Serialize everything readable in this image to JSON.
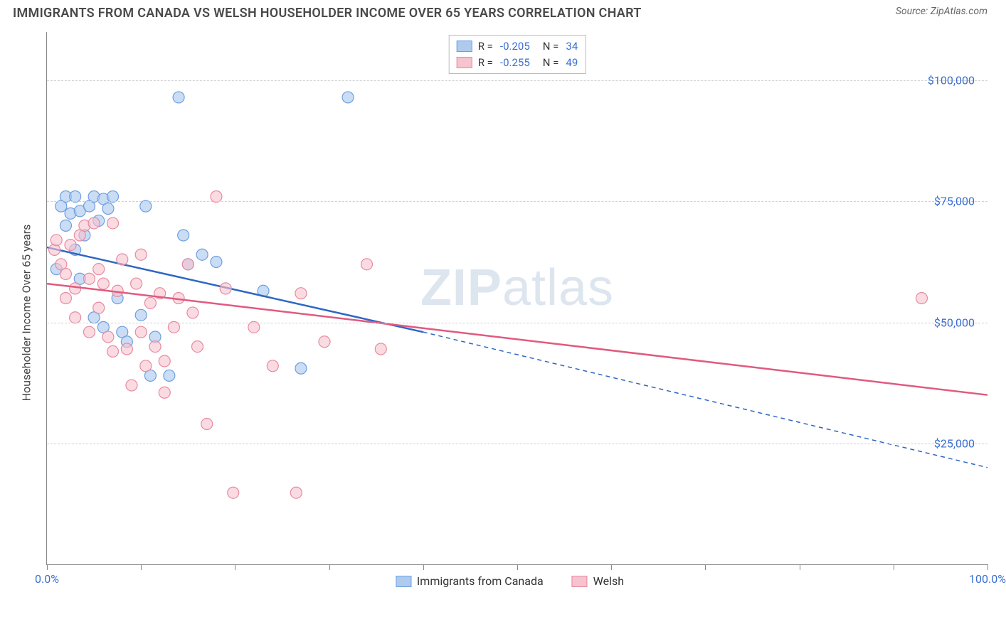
{
  "title": "IMMIGRANTS FROM CANADA VS WELSH HOUSEHOLDER INCOME OVER 65 YEARS CORRELATION CHART",
  "source_label": "Source: ZipAtlas.com",
  "watermark": "ZIPatlas",
  "yaxis_label": "Householder Income Over 65 years",
  "chart": {
    "type": "scatter-correlation",
    "background_color": "#ffffff",
    "grid_color": "#d0d0d0",
    "axis_color": "#888888",
    "tick_label_color": "#3b6fd0",
    "xlim": [
      0,
      100
    ],
    "ylim": [
      0,
      110000
    ],
    "xticks": [
      0,
      10,
      20,
      30,
      40,
      50,
      60,
      70,
      80,
      90,
      100
    ],
    "xtick_labels": {
      "0": "0.0%",
      "100": "100.0%"
    },
    "yticks": [
      25000,
      50000,
      75000,
      100000
    ],
    "ytick_labels": {
      "25000": "$25,000",
      "50000": "$50,000",
      "75000": "$75,000",
      "100000": "$100,000"
    },
    "series": [
      {
        "name": "Immigrants from Canada",
        "color_fill": "#aecbee",
        "color_stroke": "#6d9fe0",
        "line_color": "#2e66c4",
        "line_width": 2.5,
        "marker_radius": 8,
        "marker_opacity": 0.65,
        "r_value": "-0.205",
        "n_value": "34",
        "trend": {
          "x1": 0,
          "y1": 65500,
          "x2": 40,
          "y2": 48000,
          "dash_after_x": 40,
          "x3": 100,
          "y3": 20000
        },
        "points": [
          [
            1.0,
            61000
          ],
          [
            1.5,
            74000
          ],
          [
            2.0,
            76000
          ],
          [
            2.0,
            70000
          ],
          [
            2.5,
            72500
          ],
          [
            3.0,
            76000
          ],
          [
            3.0,
            65000
          ],
          [
            3.5,
            73000
          ],
          [
            3.5,
            59000
          ],
          [
            4.0,
            68000
          ],
          [
            4.5,
            74000
          ],
          [
            5.0,
            76000
          ],
          [
            5.0,
            51000
          ],
          [
            5.5,
            71000
          ],
          [
            6.0,
            75500
          ],
          [
            6.0,
            49000
          ],
          [
            6.5,
            73500
          ],
          [
            7.0,
            76000
          ],
          [
            7.5,
            55000
          ],
          [
            8.0,
            48000
          ],
          [
            8.5,
            46000
          ],
          [
            10.0,
            51500
          ],
          [
            10.5,
            74000
          ],
          [
            11.0,
            39000
          ],
          [
            11.5,
            47000
          ],
          [
            13.0,
            39000
          ],
          [
            14.0,
            96500
          ],
          [
            14.5,
            68000
          ],
          [
            15.0,
            62000
          ],
          [
            16.5,
            64000
          ],
          [
            18.0,
            62500
          ],
          [
            23.0,
            56500
          ],
          [
            27.0,
            40500
          ],
          [
            32.0,
            96500
          ]
        ]
      },
      {
        "name": "Welsh",
        "color_fill": "#f6c3cf",
        "color_stroke": "#e88aa0",
        "line_color": "#e05a80",
        "line_width": 2.5,
        "marker_radius": 8,
        "marker_opacity": 0.6,
        "r_value": "-0.255",
        "n_value": "49",
        "trend": {
          "x1": 0,
          "y1": 58000,
          "x2": 100,
          "y2": 35000
        },
        "points": [
          [
            0.8,
            65000
          ],
          [
            1.0,
            67000
          ],
          [
            1.5,
            62000
          ],
          [
            2.0,
            60000
          ],
          [
            2.0,
            55000
          ],
          [
            2.5,
            66000
          ],
          [
            3.0,
            57000
          ],
          [
            3.0,
            51000
          ],
          [
            3.5,
            68000
          ],
          [
            4.0,
            70000
          ],
          [
            4.5,
            59000
          ],
          [
            4.5,
            48000
          ],
          [
            5.0,
            70500
          ],
          [
            5.5,
            61000
          ],
          [
            5.5,
            53000
          ],
          [
            6.0,
            58000
          ],
          [
            6.5,
            47000
          ],
          [
            7.0,
            70500
          ],
          [
            7.0,
            44000
          ],
          [
            7.5,
            56500
          ],
          [
            8.0,
            63000
          ],
          [
            8.5,
            44500
          ],
          [
            9.0,
            37000
          ],
          [
            9.5,
            58000
          ],
          [
            10.0,
            64000
          ],
          [
            10.0,
            48000
          ],
          [
            10.5,
            41000
          ],
          [
            11.0,
            54000
          ],
          [
            11.5,
            45000
          ],
          [
            12.0,
            56000
          ],
          [
            12.5,
            42000
          ],
          [
            12.5,
            35500
          ],
          [
            13.5,
            49000
          ],
          [
            14.0,
            55000
          ],
          [
            15.0,
            62000
          ],
          [
            15.5,
            52000
          ],
          [
            16.0,
            45000
          ],
          [
            17.0,
            29000
          ],
          [
            18.0,
            76000
          ],
          [
            19.0,
            57000
          ],
          [
            19.8,
            14800
          ],
          [
            22.0,
            49000
          ],
          [
            24.0,
            41000
          ],
          [
            26.5,
            14800
          ],
          [
            27.0,
            56000
          ],
          [
            29.5,
            46000
          ],
          [
            34.0,
            62000
          ],
          [
            35.5,
            44500
          ],
          [
            93.0,
            55000
          ]
        ]
      }
    ],
    "legend_bottom": [
      {
        "label": "Immigrants from Canada",
        "fill": "#aecbee",
        "stroke": "#6d9fe0"
      },
      {
        "label": "Welsh",
        "fill": "#f6c3cf",
        "stroke": "#e88aa0"
      }
    ]
  }
}
